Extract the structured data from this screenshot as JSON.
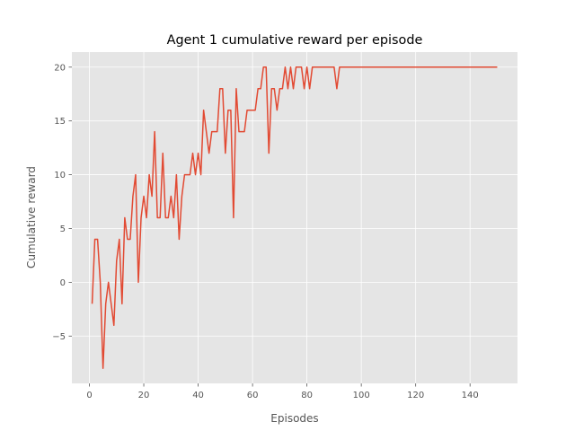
{
  "chart_data": {
    "type": "line",
    "title": "Agent 1 cumulative reward per episode",
    "xlabel": "Episodes",
    "ylabel": "Cumulative reward",
    "xlim": [
      -6.45,
      157.45
    ],
    "ylim": [
      -9.4,
      21.4
    ],
    "xticks": [
      0,
      20,
      40,
      60,
      80,
      100,
      120,
      140
    ],
    "yticks": [
      -5,
      0,
      5,
      10,
      15,
      20
    ],
    "grid": true,
    "colors": {
      "background": "#e5e5e5",
      "line": "#e24a33"
    },
    "series": [
      {
        "x": [
          1,
          2,
          3,
          4,
          5,
          6,
          7,
          8,
          9,
          10,
          11,
          12,
          13,
          14,
          15,
          16,
          17,
          18,
          19,
          20,
          21,
          22,
          23,
          24,
          25,
          26,
          27,
          28,
          29,
          30,
          31,
          32,
          33,
          34,
          35,
          36,
          37,
          38,
          39,
          40,
          41,
          42,
          43,
          44,
          45,
          46,
          47,
          48,
          49,
          50,
          51,
          52,
          53,
          54,
          55,
          56,
          57,
          58,
          59,
          60,
          61,
          62,
          63,
          64,
          65,
          66,
          67,
          68,
          69,
          70,
          71,
          72,
          73,
          74,
          75,
          76,
          77,
          78,
          79,
          80,
          81,
          82,
          83,
          84,
          85,
          86,
          87,
          88,
          89,
          90,
          91,
          92,
          93,
          94,
          95,
          96,
          97,
          98,
          99,
          100,
          101,
          102,
          103,
          104,
          105,
          106,
          107,
          108,
          109,
          110,
          111,
          112,
          113,
          114,
          115,
          116,
          117,
          118,
          119,
          120,
          121,
          122,
          123,
          124,
          125,
          126,
          127,
          128,
          129,
          130,
          131,
          132,
          133,
          134,
          135,
          136,
          137,
          138,
          139,
          140,
          141,
          142,
          143,
          144,
          145,
          146,
          147,
          148,
          149,
          150
        ],
        "values": [
          -2,
          4,
          4,
          0,
          -8,
          -2,
          0,
          -2,
          -4,
          2,
          4,
          -2,
          6,
          4,
          4,
          8,
          10,
          0,
          6,
          8,
          6,
          10,
          8,
          14,
          6,
          6,
          12,
          6,
          6,
          8,
          6,
          10,
          4,
          8,
          10,
          10,
          10,
          12,
          10,
          12,
          10,
          16,
          14,
          12,
          14,
          14,
          14,
          18,
          18,
          12,
          16,
          16,
          6,
          18,
          14,
          14,
          14,
          16,
          16,
          16,
          16,
          18,
          18,
          20,
          20,
          12,
          18,
          18,
          16,
          18,
          18,
          20,
          18,
          20,
          18,
          20,
          20,
          20,
          18,
          20,
          18,
          20,
          20,
          20,
          20,
          20,
          20,
          20,
          20,
          20,
          18,
          20,
          20,
          20,
          20,
          20,
          20,
          20,
          20,
          20,
          20,
          20,
          20,
          20,
          20,
          20,
          20,
          20,
          20,
          20,
          20,
          20,
          20,
          20,
          20,
          20,
          20,
          20,
          20,
          20,
          20,
          20,
          20,
          20,
          20,
          20,
          20,
          20,
          20,
          20,
          20,
          20,
          20,
          20,
          20,
          20,
          20,
          20,
          20,
          20,
          20,
          20,
          20,
          20,
          20,
          20,
          20,
          20,
          20,
          20
        ]
      }
    ]
  }
}
